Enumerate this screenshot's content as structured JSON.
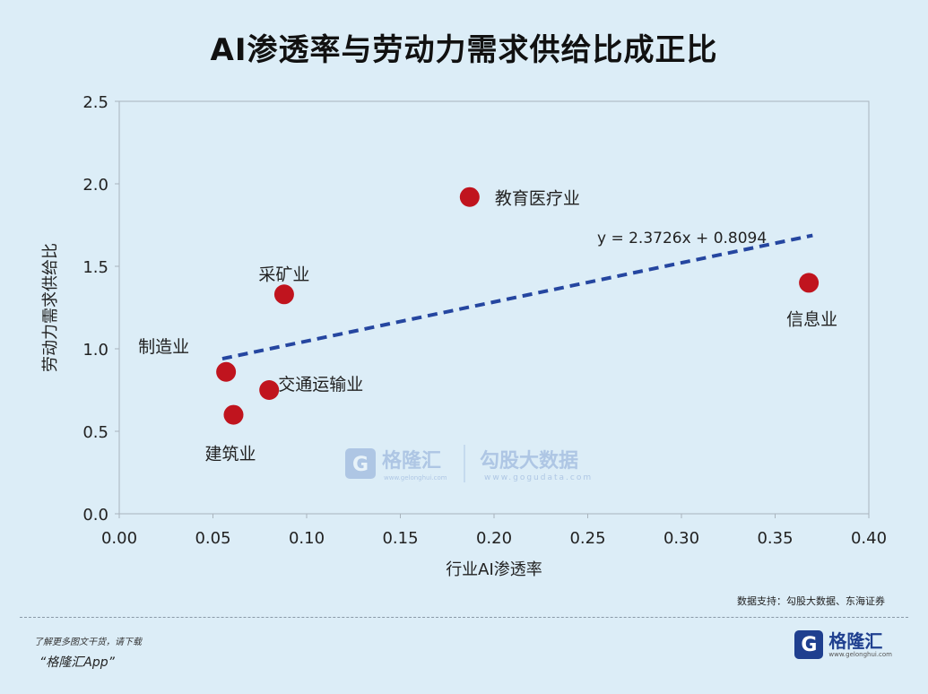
{
  "chart_data": {
    "type": "scatter",
    "title": "AI渗透率与劳动力需求供给比成正比",
    "xlabel": "行业AI渗透率",
    "ylabel": "劳动力需求供给比",
    "xlim": [
      0,
      0.4
    ],
    "ylim": [
      0,
      2.5
    ],
    "x_ticks": [
      "0.00",
      "0.05",
      "0.10",
      "0.15",
      "0.20",
      "0.25",
      "0.30",
      "0.35",
      "0.40"
    ],
    "y_ticks": [
      "0.0",
      "0.5",
      "1.0",
      "1.5",
      "2.0",
      "2.5"
    ],
    "grid": false,
    "points": [
      {
        "label": "教育医疗业",
        "x": 0.187,
        "y": 1.92
      },
      {
        "label": "采矿业",
        "x": 0.088,
        "y": 1.33
      },
      {
        "label": "信息业",
        "x": 0.368,
        "y": 1.4
      },
      {
        "label": "制造业",
        "x": 0.057,
        "y": 0.86
      },
      {
        "label": "交通运输业",
        "x": 0.08,
        "y": 0.75
      },
      {
        "label": "建筑业",
        "x": 0.061,
        "y": 0.6
      }
    ],
    "trendline": {
      "slope": 2.3726,
      "intercept": 0.8094,
      "x_range": [
        0.055,
        0.37
      ],
      "equation": "y = 2.3726x + 0.8094"
    },
    "point_color": "#c0141e",
    "trend_color": "#2546a0"
  },
  "watermark": {
    "brand": "格隆汇",
    "brand_url": "www.gelonghui.com",
    "data_name": "勾股大数据",
    "data_url": "www.gogudata.com"
  },
  "source": "数据支持：勾股大数据、东海证券",
  "promo": {
    "line1": "了解更多图文干货，请下载",
    "line2": "“格隆汇App”"
  },
  "logo": {
    "mark": "G",
    "name": "格隆汇",
    "url": "www.gelonghui.com"
  }
}
